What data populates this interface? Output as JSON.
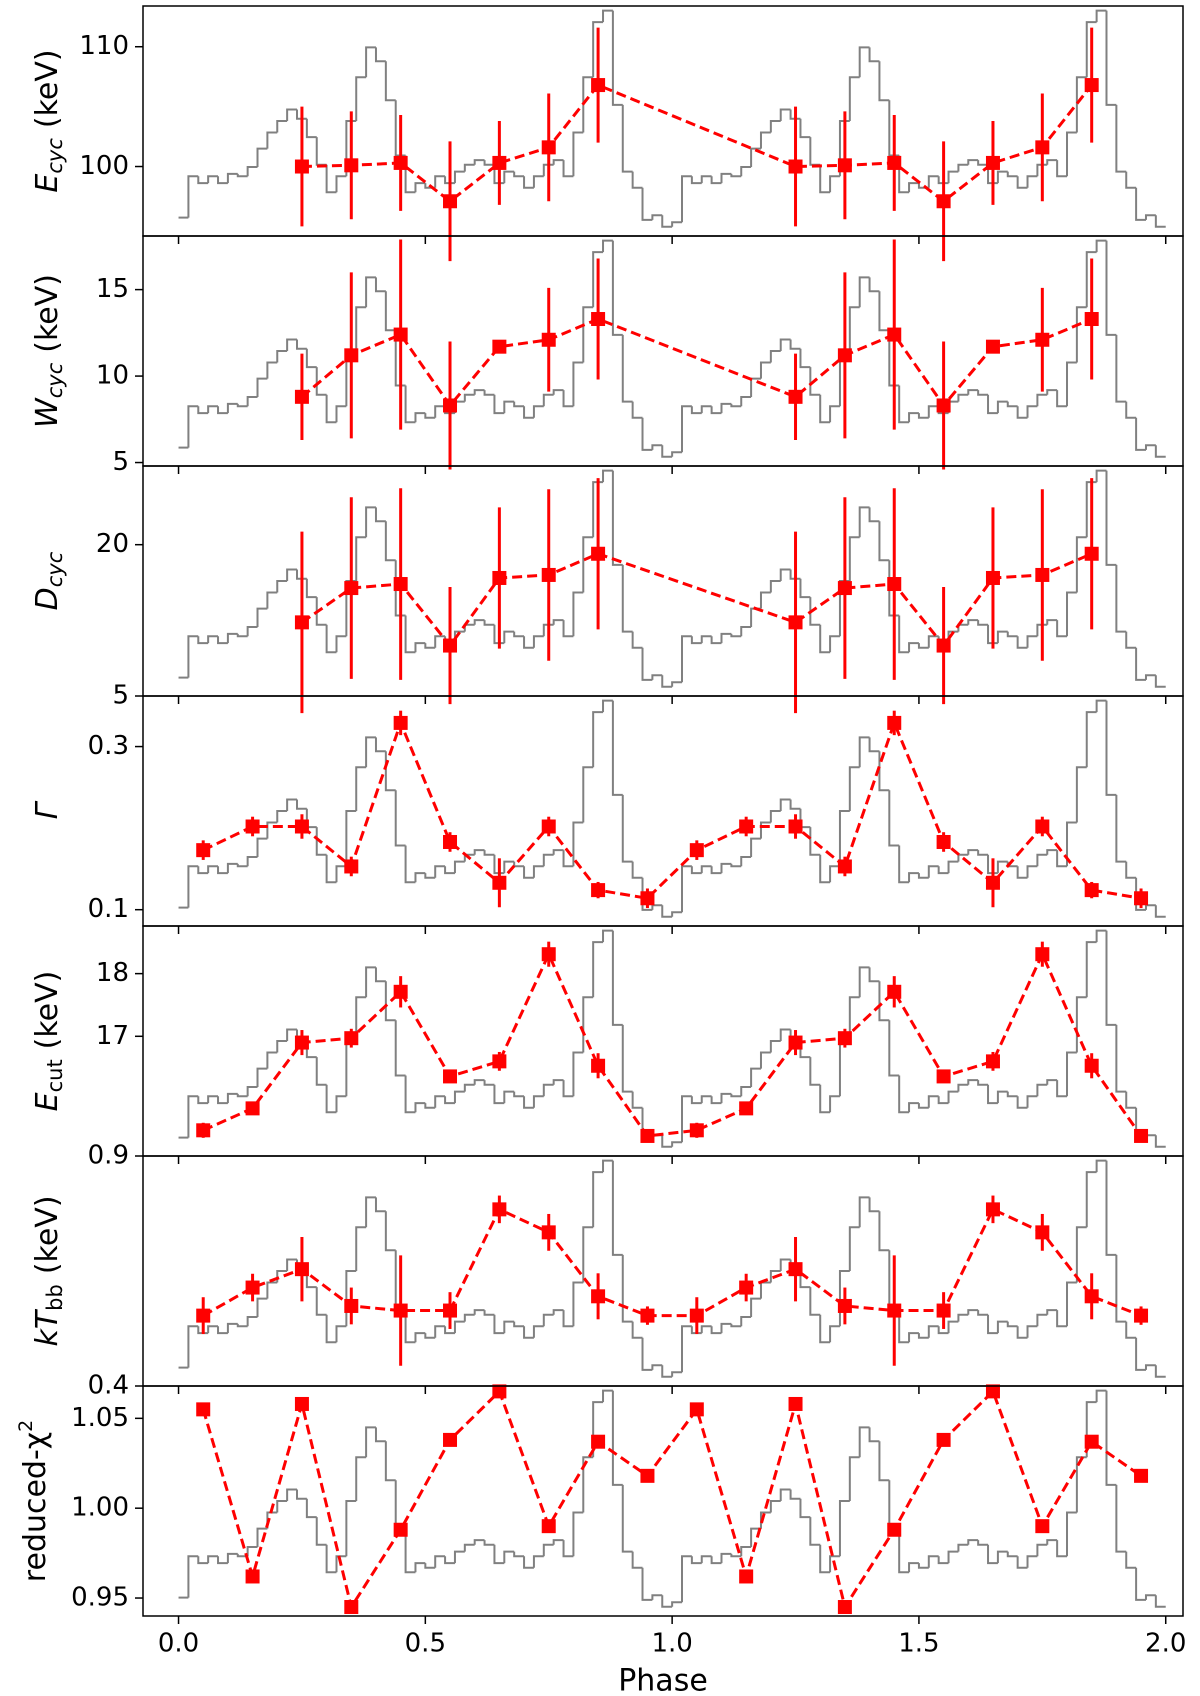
{
  "profile": {
    "type": "histogram",
    "color": "#808080",
    "ylim": [
      0,
      1
    ],
    "bins": [
      0,
      0.02,
      0.04,
      0.06,
      0.08,
      0.1,
      0.12,
      0.14,
      0.16,
      0.18,
      0.2,
      0.22,
      0.24,
      0.26,
      0.28,
      0.3,
      0.32,
      0.34,
      0.36,
      0.38,
      0.4,
      0.42,
      0.44,
      0.46,
      0.48,
      0.5,
      0.52,
      0.54,
      0.56,
      0.58,
      0.6,
      0.62,
      0.64,
      0.66,
      0.68,
      0.7,
      0.72,
      0.74,
      0.76,
      0.78,
      0.8,
      0.82,
      0.84,
      0.86,
      0.88,
      0.9,
      0.92,
      0.94,
      0.96,
      0.98,
      1,
      1.02,
      1.04,
      1.06,
      1.08,
      1.1,
      1.12,
      1.14,
      1.16,
      1.18,
      1.2,
      1.22,
      1.24,
      1.26,
      1.28,
      1.3,
      1.32,
      1.34,
      1.36,
      1.38,
      1.4,
      1.42,
      1.44,
      1.46,
      1.48,
      1.5,
      1.52,
      1.54,
      1.56,
      1.58,
      1.6,
      1.62,
      1.64,
      1.66,
      1.68,
      1.7,
      1.72,
      1.74,
      1.76,
      1.78,
      1.8,
      1.82,
      1.84,
      1.86,
      1.88,
      1.9,
      1.92,
      1.94,
      1.96,
      1.98,
      2
    ],
    "values": [
      0.08,
      0.26,
      0.23,
      0.26,
      0.23,
      0.27,
      0.26,
      0.3,
      0.38,
      0.45,
      0.5,
      0.55,
      0.51,
      0.43,
      0.31,
      0.19,
      0.26,
      0.5,
      0.69,
      0.82,
      0.76,
      0.59,
      0.35,
      0.19,
      0.23,
      0.21,
      0.26,
      0.23,
      0.28,
      0.31,
      0.33,
      0.31,
      0.23,
      0.28,
      0.26,
      0.21,
      0.26,
      0.31,
      0.33,
      0.26,
      0.45,
      0.69,
      0.93,
      0.98,
      0.57,
      0.28,
      0.21,
      0.07,
      0.09,
      0.04,
      0.06,
      0.26,
      0.23,
      0.26,
      0.23,
      0.27,
      0.26,
      0.3,
      0.38,
      0.45,
      0.5,
      0.55,
      0.51,
      0.43,
      0.31,
      0.19,
      0.26,
      0.5,
      0.69,
      0.82,
      0.76,
      0.59,
      0.35,
      0.19,
      0.23,
      0.21,
      0.26,
      0.23,
      0.28,
      0.31,
      0.33,
      0.31,
      0.23,
      0.28,
      0.26,
      0.21,
      0.26,
      0.31,
      0.33,
      0.26,
      0.45,
      0.69,
      0.93,
      0.98,
      0.57,
      0.28,
      0.21,
      0.07,
      0.09,
      0.04
    ]
  },
  "chart_data": [
    {
      "type": "errorbar",
      "ylabel": {
        "main": "E",
        "sub": "cyc",
        "unit": "(keV)"
      },
      "color": "#ff0000",
      "x": [
        0.25,
        0.35,
        0.45,
        0.55,
        0.65,
        0.75,
        0.85,
        1.25,
        1.35,
        1.45,
        1.55,
        1.65,
        1.75,
        1.85
      ],
      "values": [
        100.0,
        100.1,
        100.3,
        97.1,
        100.3,
        101.6,
        106.8,
        100.0,
        100.1,
        100.3,
        97.1,
        100.3,
        101.6,
        106.8
      ],
      "errors": [
        5,
        4.5,
        4,
        5,
        3.5,
        4.5,
        4.8,
        5,
        4.5,
        4,
        5,
        3.5,
        4.5,
        4.8
      ],
      "xlim": [
        -0.072,
        2.035
      ],
      "xticks": [
        {
          "value": 0,
          "label": "0.0"
        },
        0.5,
        {
          "value": 1,
          "label": "1.0"
        },
        1.5,
        {
          "value": 2,
          "label": "2.0"
        }
      ],
      "ylim": [
        94.2,
        113.4
      ],
      "yticks": [
        100,
        110
      ]
    },
    {
      "type": "errorbar",
      "ylabel": {
        "main": "W",
        "sub": "cyc",
        "unit": "(keV)"
      },
      "color": "#ff0000",
      "x": [
        0.25,
        0.35,
        0.45,
        0.55,
        0.65,
        0.75,
        0.85,
        1.25,
        1.35,
        1.45,
        1.55,
        1.65,
        1.75,
        1.85
      ],
      "values": [
        8.8,
        11.2,
        12.4,
        8.3,
        11.7,
        12.1,
        13.3,
        8.8,
        11.2,
        12.4,
        8.3,
        11.7,
        12.1,
        13.3
      ],
      "errors": [
        2.5,
        4.8,
        5.5,
        3.7,
        0.3,
        3.0,
        3.5,
        2.5,
        4.8,
        5.5,
        3.7,
        0.3,
        3.0,
        3.5
      ],
      "xlim": [
        -0.072,
        2.035
      ],
      "xticks": [
        {
          "value": 0,
          "label": "0.0"
        },
        0.5,
        {
          "value": 1,
          "label": "1.0"
        },
        1.5,
        {
          "value": 2,
          "label": "2.0"
        }
      ],
      "ylim": [
        4.8,
        18.1
      ],
      "yticks": [
        5,
        10,
        15
      ]
    },
    {
      "type": "errorbar",
      "ylabel": {
        "main": "D",
        "sub": "cyc"
      },
      "color": "#ff0000",
      "x": [
        0.25,
        0.35,
        0.45,
        0.55,
        0.65,
        0.75,
        0.85,
        1.25,
        1.35,
        1.45,
        1.55,
        1.65,
        1.75,
        1.85
      ],
      "values": [
        12.3,
        15.7,
        16.1,
        10.0,
        16.7,
        17.0,
        19.1,
        12.3,
        15.7,
        16.1,
        10.0,
        16.7,
        17.0,
        19.1
      ],
      "errors": [
        9,
        9,
        9.5,
        5.8,
        7,
        8.5,
        7.5,
        9,
        9,
        9.5,
        5.8,
        7,
        8.5,
        7.5
      ],
      "xlim": [
        -0.072,
        2.035
      ],
      "xticks": [
        {
          "value": 0,
          "label": "0.0"
        },
        0.5,
        {
          "value": 1,
          "label": "1.0"
        },
        1.5,
        {
          "value": 2,
          "label": "2.0"
        }
      ],
      "ylim": [
        5,
        27.8
      ],
      "yticks": [
        5,
        20
      ]
    },
    {
      "type": "errorbar",
      "ylabel": {
        "main": "Γ"
      },
      "color": "#ff0000",
      "x": [
        0.05,
        0.15,
        0.25,
        0.35,
        0.45,
        0.55,
        0.65,
        0.75,
        0.85,
        0.95,
        1.05,
        1.15,
        1.25,
        1.35,
        1.45,
        1.55,
        1.65,
        1.75,
        1.85,
        1.95
      ],
      "values": [
        0.173,
        0.202,
        0.202,
        0.153,
        0.329,
        0.183,
        0.133,
        0.202,
        0.124,
        0.114,
        0.173,
        0.202,
        0.202,
        0.153,
        0.329,
        0.183,
        0.133,
        0.202,
        0.124,
        0.114
      ],
      "errors": [
        0.012,
        0.012,
        0.015,
        0.012,
        0.015,
        0.012,
        0.03,
        0.012,
        0.01,
        0.012,
        0.012,
        0.012,
        0.015,
        0.012,
        0.015,
        0.012,
        0.03,
        0.012,
        0.01,
        0.012
      ],
      "xlim": [
        -0.072,
        2.035
      ],
      "xticks": [
        {
          "value": 0,
          "label": "0.0"
        },
        0.5,
        {
          "value": 1,
          "label": "1.0"
        },
        1.5,
        {
          "value": 2,
          "label": "2.0"
        }
      ],
      "ylim": [
        0.08,
        0.362
      ],
      "yticks": [
        0.1,
        0.3
      ]
    },
    {
      "type": "errorbar",
      "ylabel": {
        "main": "E",
        "sub": "cut",
        "unit": "(keV)"
      },
      "color": "#ff0000",
      "x": [
        0.05,
        0.15,
        0.25,
        0.35,
        0.45,
        0.55,
        0.65,
        0.75,
        0.85,
        0.95,
        1.05,
        1.15,
        1.25,
        1.35,
        1.45,
        1.55,
        1.65,
        1.75,
        1.85,
        1.95
      ],
      "values": [
        15.5,
        15.85,
        16.9,
        16.97,
        17.71,
        16.36,
        16.6,
        18.31,
        16.53,
        15.41,
        15.5,
        15.85,
        16.9,
        16.97,
        17.71,
        16.36,
        16.6,
        18.31,
        16.53,
        15.41
      ],
      "errors": [
        0.12,
        0.1,
        0.2,
        0.15,
        0.25,
        0.1,
        0.15,
        0.2,
        0.2,
        0.1,
        0.12,
        0.1,
        0.2,
        0.15,
        0.25,
        0.1,
        0.15,
        0.2,
        0.2,
        0.1
      ],
      "xlim": [
        -0.072,
        2.035
      ],
      "xticks": [
        {
          "value": 0,
          "label": "0.0"
        },
        0.5,
        {
          "value": 1,
          "label": "1.0"
        },
        1.5,
        {
          "value": 2,
          "label": "2.0"
        }
      ],
      "ylim": [
        15.09,
        18.76
      ],
      "yticks": [
        17,
        18
      ]
    },
    {
      "type": "errorbar",
      "ylabel": {
        "main": "kT",
        "sub": "bb",
        "unit": "(keV)"
      },
      "color": "#ff0000",
      "x": [
        0.05,
        0.15,
        0.25,
        0.35,
        0.45,
        0.55,
        0.65,
        0.75,
        0.85,
        0.95,
        1.05,
        1.15,
        1.25,
        1.35,
        1.45,
        1.55,
        1.65,
        1.75,
        1.85,
        1.95
      ],
      "values": [
        0.553,
        0.614,
        0.654,
        0.574,
        0.564,
        0.564,
        0.784,
        0.734,
        0.595,
        0.553,
        0.553,
        0.614,
        0.654,
        0.574,
        0.564,
        0.564,
        0.784,
        0.734,
        0.595,
        0.553
      ],
      "errors": [
        0.04,
        0.03,
        0.07,
        0.04,
        0.12,
        0.04,
        0.03,
        0.04,
        0.05,
        0.02,
        0.04,
        0.03,
        0.07,
        0.04,
        0.12,
        0.04,
        0.03,
        0.04,
        0.05,
        0.02
      ],
      "xlim": [
        -0.072,
        2.035
      ],
      "xticks": [
        {
          "value": 0,
          "label": "0.0"
        },
        0.5,
        {
          "value": 1,
          "label": "1.0"
        },
        1.5,
        {
          "value": 2,
          "label": "2.0"
        }
      ],
      "ylim": [
        0.4,
        0.9
      ],
      "yticks": [
        0.4,
        0.9
      ]
    },
    {
      "type": "errorbar",
      "ylabel": {
        "main": "reduced-χ",
        "sup": "2"
      },
      "color": "#ff0000",
      "x": [
        0.05,
        0.15,
        0.25,
        0.35,
        0.45,
        0.55,
        0.65,
        0.75,
        0.85,
        0.95,
        1.05,
        1.15,
        1.25,
        1.35,
        1.45,
        1.55,
        1.65,
        1.75,
        1.85,
        1.95
      ],
      "values": [
        1.055,
        0.962,
        1.058,
        0.945,
        0.988,
        1.038,
        1.065,
        0.99,
        1.037,
        1.018,
        1.055,
        0.962,
        1.058,
        0.945,
        0.988,
        1.038,
        1.065,
        0.99,
        1.037,
        1.018
      ],
      "xlim": [
        -0.072,
        2.035
      ],
      "xticks": [
        {
          "value": 0,
          "label": "0.0"
        },
        0.5,
        {
          "value": 1,
          "label": "1.0"
        },
        1.5,
        {
          "value": 2,
          "label": "2.0"
        }
      ],
      "ylim": [
        0.94,
        1.068
      ],
      "yticks": [
        0.95,
        {
          "value": 1.0,
          "label": "1.00"
        },
        1.05
      ],
      "xlabel": "Phase"
    }
  ]
}
